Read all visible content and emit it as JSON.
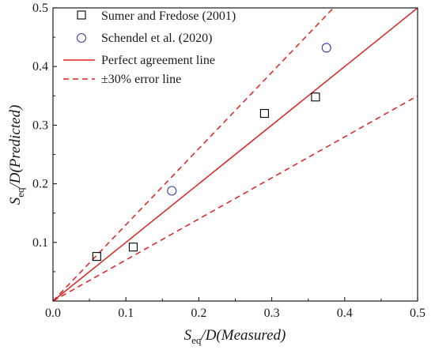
{
  "chart_data": {
    "type": "scatter",
    "xlabel": {
      "main": "S",
      "sub": "eq",
      "rest": "/D(Measured)"
    },
    "ylabel": {
      "main": "S",
      "sub": "eq",
      "rest": "/D(Predicted)"
    },
    "xlim": [
      0,
      0.5
    ],
    "ylim": [
      0,
      0.5
    ],
    "xticks": [
      "0.0",
      "0.1",
      "0.2",
      "0.3",
      "0.4",
      "0.5"
    ],
    "yticks": [
      "0.1",
      "0.2",
      "0.3",
      "0.4",
      "0.5"
    ],
    "grid": false,
    "legend_position": "top-left",
    "series": [
      {
        "name": "Sumer and Fredose (2001)",
        "marker": "square",
        "color": "#000000",
        "points": [
          {
            "x": 0.06,
            "y": 0.076
          },
          {
            "x": 0.11,
            "y": 0.092
          },
          {
            "x": 0.29,
            "y": 0.32
          },
          {
            "x": 0.36,
            "y": 0.348
          }
        ]
      },
      {
        "name": "Schendel et al. (2020)",
        "marker": "circle",
        "color": "#3a3aa8",
        "points": [
          {
            "x": 0.163,
            "y": 0.188
          },
          {
            "x": 0.375,
            "y": 0.432
          }
        ]
      }
    ],
    "lines": [
      {
        "name": "Perfect agreement line",
        "style": "solid",
        "color": "#e02020",
        "slope": 1.0
      },
      {
        "name": "±30% error line",
        "style": "dashed",
        "color": "#e02020",
        "slopes": [
          1.3,
          0.7
        ]
      }
    ]
  }
}
